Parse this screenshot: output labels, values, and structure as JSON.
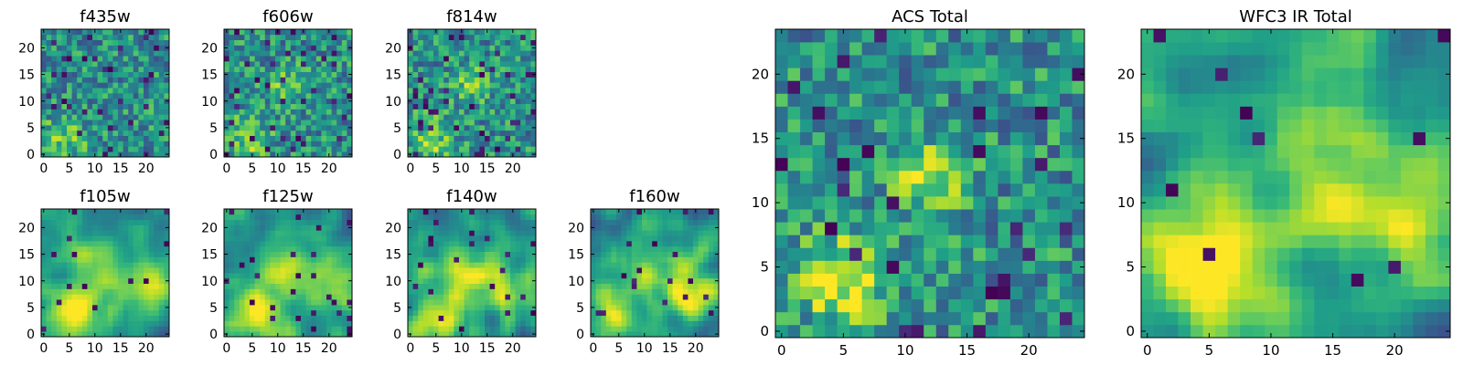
{
  "figure": {
    "colormap": "viridis",
    "background": "#ffffff",
    "frame_color": "#000000"
  },
  "chart_data": [
    {
      "id": "f435w",
      "type": "heatmap",
      "title": "f435w",
      "rows": 24,
      "cols": 25,
      "xlim": [
        -0.5,
        24.5
      ],
      "ylim": [
        -0.5,
        23.5
      ],
      "xticks": [
        0,
        5,
        10,
        15,
        20
      ],
      "yticks": [
        0,
        5,
        10,
        15,
        20
      ],
      "seed": 11,
      "smoothing": 0,
      "noise_floor": 0.06,
      "hotspots": [
        [
          4,
          3,
          3.0,
          0.25
        ]
      ]
    },
    {
      "id": "f606w",
      "type": "heatmap",
      "title": "f606w",
      "rows": 24,
      "cols": 25,
      "xlim": [
        -0.5,
        24.5
      ],
      "ylim": [
        -0.5,
        23.5
      ],
      "xticks": [
        0,
        5,
        10,
        15,
        20
      ],
      "yticks": [
        0,
        5,
        10,
        15,
        20
      ],
      "seed": 23,
      "smoothing": 0,
      "noise_floor": 0.06,
      "hotspots": [
        [
          4,
          3,
          3.0,
          0.3
        ],
        [
          12,
          13,
          2.5,
          0.25
        ]
      ]
    },
    {
      "id": "f814w",
      "type": "heatmap",
      "title": "f814w",
      "rows": 24,
      "cols": 25,
      "xlim": [
        -0.5,
        24.5
      ],
      "ylim": [
        -0.5,
        23.5
      ],
      "xticks": [
        0,
        5,
        10,
        15,
        20
      ],
      "yticks": [
        0,
        5,
        10,
        15,
        20
      ],
      "seed": 37,
      "smoothing": 0,
      "noise_floor": 0.06,
      "hotspots": [
        [
          4,
          3,
          3.0,
          0.3
        ],
        [
          12,
          13,
          2.5,
          0.25
        ]
      ]
    },
    {
      "id": "f105w",
      "type": "heatmap",
      "title": "f105w",
      "rows": 24,
      "cols": 25,
      "xlim": [
        -0.5,
        24.5
      ],
      "ylim": [
        -0.5,
        23.5
      ],
      "xticks": [
        0,
        5,
        10,
        15,
        20
      ],
      "yticks": [
        0,
        5,
        10,
        15,
        20
      ],
      "seed": 41,
      "smoothing": 2,
      "noise_floor": 0.03,
      "hotspots": [
        [
          5,
          4,
          4.0,
          0.45
        ],
        [
          20,
          8,
          3.5,
          0.35
        ],
        [
          12,
          12,
          4.0,
          0.3
        ]
      ]
    },
    {
      "id": "f125w",
      "type": "heatmap",
      "title": "f125w",
      "rows": 24,
      "cols": 25,
      "xlim": [
        -0.5,
        24.5
      ],
      "ylim": [
        -0.5,
        23.5
      ],
      "xticks": [
        0,
        5,
        10,
        15,
        20
      ],
      "yticks": [
        0,
        5,
        10,
        15,
        20
      ],
      "seed": 53,
      "smoothing": 2,
      "noise_floor": 0.03,
      "hotspots": [
        [
          5,
          4,
          4.0,
          0.45
        ],
        [
          20,
          8,
          3.5,
          0.35
        ],
        [
          12,
          12,
          4.0,
          0.3
        ]
      ]
    },
    {
      "id": "f140w",
      "type": "heatmap",
      "title": "f140w",
      "rows": 24,
      "cols": 25,
      "xlim": [
        -0.5,
        24.5
      ],
      "ylim": [
        -0.5,
        23.5
      ],
      "xticks": [
        0,
        5,
        10,
        15,
        20
      ],
      "yticks": [
        0,
        5,
        10,
        15,
        20
      ],
      "seed": 67,
      "smoothing": 2,
      "noise_floor": 0.03,
      "hotspots": [
        [
          5,
          4,
          4.0,
          0.45
        ],
        [
          20,
          8,
          3.5,
          0.35
        ],
        [
          12,
          12,
          4.0,
          0.3
        ]
      ]
    },
    {
      "id": "f160w",
      "type": "heatmap",
      "title": "f160w",
      "rows": 24,
      "cols": 25,
      "xlim": [
        -0.5,
        24.5
      ],
      "ylim": [
        -0.5,
        23.5
      ],
      "xticks": [
        0,
        5,
        10,
        15,
        20
      ],
      "yticks": [
        0,
        5,
        10,
        15,
        20
      ],
      "seed": 79,
      "smoothing": 2,
      "noise_floor": 0.03,
      "hotspots": [
        [
          5,
          4,
          4.0,
          0.45
        ],
        [
          20,
          8,
          3.5,
          0.35
        ],
        [
          12,
          12,
          4.0,
          0.3
        ]
      ]
    },
    {
      "id": "acs_total",
      "type": "heatmap",
      "title": "ACS Total",
      "rows": 24,
      "cols": 25,
      "xlim": [
        -0.5,
        24.5
      ],
      "ylim": [
        -0.5,
        23.5
      ],
      "xticks": [
        0,
        5,
        10,
        15,
        20
      ],
      "yticks": [
        0,
        5,
        10,
        15,
        20
      ],
      "seed": 97,
      "smoothing": 0,
      "noise_floor": 0.05,
      "hotspots": [
        [
          5,
          4,
          2.5,
          0.45
        ],
        [
          12,
          12,
          2.0,
          0.4
        ]
      ]
    },
    {
      "id": "wfc3_total",
      "type": "heatmap",
      "title": "WFC3 IR Total",
      "rows": 24,
      "cols": 25,
      "xlim": [
        -0.5,
        24.5
      ],
      "ylim": [
        -0.5,
        23.5
      ],
      "xticks": [
        0,
        5,
        10,
        15,
        20
      ],
      "yticks": [
        0,
        5,
        10,
        15,
        20
      ],
      "seed": 131,
      "smoothing": 2,
      "noise_floor": 0.02,
      "hotspots": [
        [
          5,
          5,
          4.0,
          0.5
        ],
        [
          15,
          11,
          5.0,
          0.35
        ],
        [
          23,
          9,
          3.0,
          0.35
        ]
      ]
    }
  ]
}
